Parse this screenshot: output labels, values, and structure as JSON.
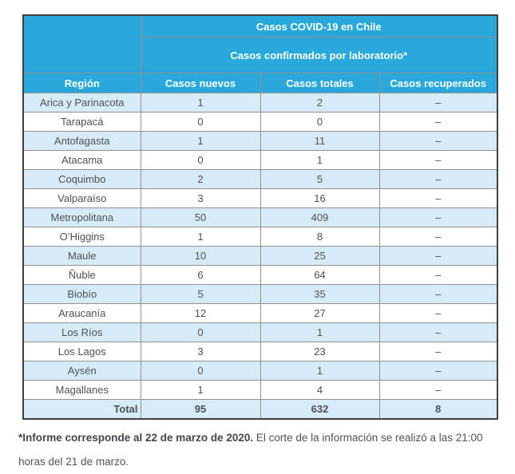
{
  "chart_data": {
    "type": "table",
    "title": "Casos COVID-19 en Chile",
    "subtitle": "Casos confirmados por laboratorio*",
    "columns": [
      "Región",
      "Casos nuevos",
      "Casos totales",
      "Casos recuperados"
    ],
    "rows": [
      [
        "Arica y Parinacota",
        "1",
        "2",
        "–"
      ],
      [
        "Tarapacá",
        "0",
        "0",
        "–"
      ],
      [
        "Antofagasta",
        "1",
        "11",
        "–"
      ],
      [
        "Atacama",
        "0",
        "1",
        "–"
      ],
      [
        "Coquimbo",
        "2",
        "5",
        "–"
      ],
      [
        "Valparaíso",
        "3",
        "16",
        "–"
      ],
      [
        "Metropolitana",
        "50",
        "409",
        "–"
      ],
      [
        "O’Higgins",
        "1",
        "8",
        "–"
      ],
      [
        "Maule",
        "10",
        "25",
        "–"
      ],
      [
        "Ñuble",
        "6",
        "64",
        "–"
      ],
      [
        "Biobío",
        "5",
        "35",
        "–"
      ],
      [
        "Araucanía",
        "12",
        "27",
        "–"
      ],
      [
        "Los Ríos",
        "0",
        "1",
        "–"
      ],
      [
        "Los Lagos",
        "3",
        "23",
        "–"
      ],
      [
        "Aysén",
        "0",
        "1",
        "–"
      ],
      [
        "Magallanes",
        "1",
        "4",
        "–"
      ]
    ],
    "total_row": [
      "Total",
      "95",
      "632",
      "8"
    ],
    "layout_hints": {
      "shaded_row_indices": "even rows starting at 0, plus total row",
      "grid": "on"
    }
  },
  "footnote": {
    "bold": "*Informe corresponde al 22 de marzo de 2020.",
    "regular": "El corte de la información se realizó a las 21:00 horas del 21 de marzo."
  },
  "colors": {
    "header_blue": "#29a8dc",
    "row_light_blue": "#d7ebf6",
    "outer_border": "#3d4043",
    "grid_border": "#8e9092",
    "body_text": "#4c5155"
  }
}
